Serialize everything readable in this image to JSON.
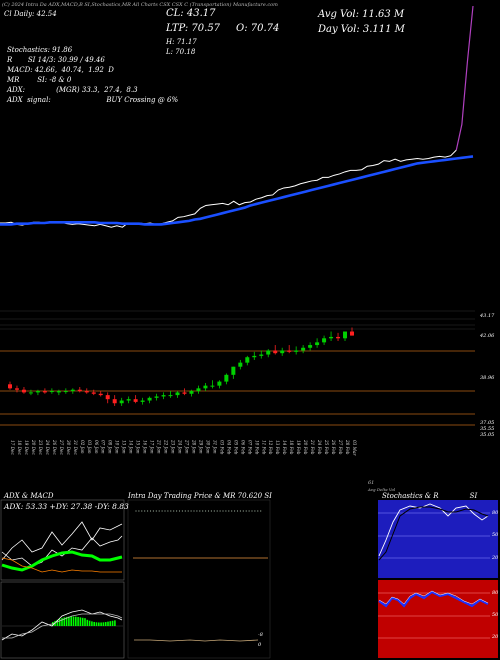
{
  "header": {
    "line1": "(C) 2024 Intra Da  ADX,MACD,B      SI,Stochastics,MR      All Charts    CSX        CSX  C                        (Transportation) Manufacture.com",
    "line2": "Cl  Daily: 42.54",
    "cl_label": "CL: 43.17",
    "ltp_label": "LTP: 70.57",
    "o_label": "O: 70.74",
    "h_label": "H: 71.17",
    "l_label": "L: 70.18",
    "avg_vol_label": "Avg Vol: 11.63 M",
    "day_vol_label": "Day Vol: 3.111 M"
  },
  "indicators": {
    "stochastics": "Stochastics: 91.86",
    "r": "R       SI 14/3: 30.99 / 49.46",
    "macd": "MACD: 42.66,  40.74,  1.92  D",
    "mr": "MR        SI: -8 & 0",
    "adx": "ADX:              (MGR) 33.3,  27.4,  8.3",
    "adx_signal": "ADX  signal:                         BUY Crossing @ 6%"
  },
  "price_levels": [
    "43.17",
    "42.06",
    "38.96",
    "37.05",
    "35.55",
    "35.05"
  ],
  "date_labels": [
    "17 Dec",
    "18 Dec",
    "19 Dec",
    "20 Dec",
    "23 Dec",
    "24 Dec",
    "26 Dec",
    "27 Dec",
    "30 Dec",
    "31 Dec",
    "02 Jan",
    "03 Jan",
    "06 Jan",
    "07 Jan",
    "08 Jan",
    "10 Jan",
    "13 Jan",
    "14 Jan",
    "15 Jan",
    "16 Jan",
    "17 Jan",
    "21 Jan",
    "22 Jan",
    "23 Jan",
    "24 Jan",
    "27 Jan",
    "28 Jan",
    "29 Jan",
    "30 Jan",
    "31 Jan",
    "03 Feb",
    "04 Feb",
    "05 Feb",
    "06 Feb",
    "07 Feb",
    "10 Feb",
    "11 Feb",
    "12 Feb",
    "13 Feb",
    "14 Feb",
    "18 Feb",
    "19 Feb",
    "20 Feb",
    "21 Feb",
    "24 Feb",
    "25 Feb",
    "26 Feb",
    "27 Feb",
    "28 Feb",
    "03 Mar"
  ],
  "side_labels": {
    "right_top": "61",
    "right_bottom": "Avg Delta Vol"
  },
  "panels": {
    "adx_title": "ADX  & MACD",
    "adx_values": "ADX: 53.33  +DY: 27.38  -DY: 8.83",
    "intra_title": "Intra  Day Trading Price  & MR   70.620   SI",
    "stoch_title": "Stochastics & R              SI"
  },
  "stoch_axis": [
    "80",
    "50",
    "20"
  ],
  "rsi_axis": [
    "80",
    "50",
    "20"
  ],
  "intra_axis": [
    "-8",
    "0"
  ],
  "colors": {
    "up": "#00d000",
    "down": "#ff2020",
    "ma": "#1a4fff",
    "price_line": "#ffffff",
    "level_line": "#8a4a10",
    "stoch_bg": "#1d1dbd",
    "rsi_bg": "#c00000",
    "adx_green": "#00ff00",
    "adx_orange": "#ff8000",
    "macd_hist": "#00ff00",
    "intra_line": "#c8a878"
  },
  "chart_data": [
    {
      "type": "line",
      "series": [
        {
          "values": [
            32.8,
            32.8,
            32.9,
            32.6,
            32.5,
            32.7,
            32.9,
            32.9,
            32.8,
            33.0,
            33.0,
            32.9,
            32.7,
            32.6,
            32.7,
            32.6,
            32.5,
            32.4,
            32.6,
            32.4,
            32.2,
            32.4,
            32.2,
            32.8,
            32.8,
            32.8,
            32.7,
            32.8,
            32.6,
            32.7,
            32.9,
            33.1,
            33.6,
            33.7,
            33.9,
            34.1,
            34.9,
            35.3,
            35.4,
            35.5,
            35.6,
            35.4,
            35.9,
            35.4,
            35.7,
            35.8,
            36.2,
            36.4,
            36.7,
            36.8,
            37.5,
            37.8,
            37.9,
            38.1,
            38.4,
            38.6,
            38.8,
            38.9,
            39.3,
            39.3,
            39.6,
            39.8,
            40.1,
            40.3,
            40.3,
            40.4,
            40.9,
            41.0,
            41.2,
            41.7,
            41.6,
            41.9,
            41.6,
            41.8,
            41.9,
            42.0,
            41.9,
            42.0,
            42.2,
            42.3,
            42.2,
            42.4,
            43.2,
            48.0,
            60.0,
            70.57
          ]
        },
        {
          "values": [
            32.6,
            32.6,
            32.6,
            32.7,
            32.7,
            32.7,
            32.8,
            32.8,
            32.8,
            32.9,
            32.9,
            32.9,
            32.9,
            32.9,
            32.9,
            32.9,
            32.9,
            32.9,
            32.8,
            32.8,
            32.8,
            32.8,
            32.7,
            32.7,
            32.7,
            32.7,
            32.6,
            32.6,
            32.6,
            32.6,
            32.7,
            32.8,
            32.9,
            33.0,
            33.1,
            33.3,
            33.4,
            33.6,
            33.8,
            34.0,
            34.2,
            34.4,
            34.6,
            34.8,
            35.0,
            35.3,
            35.5,
            35.7,
            35.9,
            36.1,
            36.3,
            36.5,
            36.7,
            36.9,
            37.1,
            37.3,
            37.5,
            37.7,
            37.9,
            38.1,
            38.3,
            38.5,
            38.7,
            38.9,
            39.1,
            39.3,
            39.5,
            39.7,
            39.9,
            40.1,
            40.3,
            40.5,
            40.7,
            40.9,
            41.1,
            41.3,
            41.4,
            41.5,
            41.6,
            41.7,
            41.8,
            41.9,
            42.0,
            42.1,
            42.2,
            42.3
          ]
        }
      ]
    },
    {
      "type": "bar",
      "categories": [
        "17 Dec",
        "18 Dec",
        "19 Dec",
        "20 Dec",
        "23 Dec",
        "24 Dec",
        "26 Dec",
        "27 Dec",
        "30 Dec",
        "31 Dec",
        "02 Jan",
        "03 Jan",
        "06 Jan",
        "07 Jan",
        "08 Jan",
        "10 Jan",
        "13 Jan",
        "14 Jan",
        "15 Jan",
        "16 Jan",
        "17 Jan",
        "21 Jan",
        "22 Jan",
        "23 Jan",
        "24 Jan",
        "27 Jan",
        "28 Jan",
        "29 Jan",
        "30 Jan",
        "31 Jan",
        "03 Feb",
        "04 Feb",
        "05 Feb",
        "06 Feb",
        "07 Feb",
        "10 Feb",
        "11 Feb",
        "12 Feb",
        "13 Feb",
        "14 Feb",
        "18 Feb",
        "19 Feb",
        "20 Feb",
        "21 Feb",
        "24 Feb",
        "25 Feb",
        "26 Feb",
        "27 Feb",
        "28 Feb",
        "03 Mar"
      ],
      "series": [
        {
          "name": "open",
          "values": [
            38.6,
            38.3,
            38.2,
            38.0,
            38.0,
            38.1,
            38.1,
            38.0,
            38.1,
            38.1,
            38.2,
            38.1,
            38.0,
            37.9,
            37.8,
            37.5,
            37.2,
            37.4,
            37.5,
            37.3,
            37.4,
            37.6,
            37.7,
            37.8,
            37.8,
            38.0,
            37.9,
            38.1,
            38.3,
            38.5,
            38.5,
            38.8,
            39.3,
            39.9,
            40.2,
            40.6,
            40.7,
            40.8,
            41.1,
            40.9,
            41.1,
            41.0,
            41.1,
            41.3,
            41.5,
            41.7,
            42.0,
            42.1,
            42.0,
            42.5
          ]
        },
        {
          "name": "high",
          "values": [
            38.8,
            38.5,
            38.4,
            38.2,
            38.2,
            38.3,
            38.3,
            38.2,
            38.3,
            38.3,
            38.4,
            38.3,
            38.2,
            38.1,
            38.0,
            37.8,
            37.6,
            37.7,
            37.8,
            37.6,
            37.7,
            37.9,
            38.0,
            38.1,
            38.1,
            38.3,
            38.2,
            38.5,
            38.7,
            38.9,
            38.9,
            39.4,
            39.9,
            40.4,
            40.7,
            41.0,
            41.1,
            41.2,
            41.5,
            41.3,
            41.5,
            41.4,
            41.5,
            41.7,
            42.0,
            42.2,
            42.5,
            42.4,
            42.5,
            42.8
          ]
        },
        {
          "name": "low",
          "values": [
            38.2,
            38.0,
            37.9,
            37.8,
            37.8,
            37.9,
            37.9,
            37.8,
            37.9,
            37.9,
            38.0,
            37.9,
            37.8,
            37.7,
            37.2,
            37.0,
            37.0,
            37.2,
            37.2,
            37.1,
            37.2,
            37.4,
            37.5,
            37.6,
            37.6,
            37.8,
            37.7,
            37.9,
            38.1,
            38.3,
            38.3,
            38.6,
            39.0,
            39.7,
            40.0,
            40.4,
            40.5,
            40.6,
            40.8,
            40.7,
            40.9,
            40.8,
            40.9,
            41.1,
            41.3,
            41.5,
            41.8,
            41.8,
            41.8,
            42.2
          ]
        },
        {
          "name": "close",
          "values": [
            38.3,
            38.2,
            38.0,
            38.0,
            38.1,
            38.0,
            38.1,
            38.1,
            38.1,
            38.2,
            38.1,
            38.0,
            37.9,
            37.8,
            37.5,
            37.2,
            37.4,
            37.5,
            37.3,
            37.4,
            37.6,
            37.7,
            37.8,
            37.8,
            38.0,
            37.9,
            38.1,
            38.3,
            38.5,
            38.5,
            38.8,
            39.3,
            39.9,
            40.2,
            40.6,
            40.7,
            40.8,
            41.1,
            40.9,
            41.1,
            41.0,
            41.1,
            41.3,
            41.5,
            41.7,
            42.0,
            42.1,
            42.0,
            42.5,
            42.2
          ]
        }
      ],
      "ylim": [
        35.0,
        43.5
      ]
    }
  ]
}
